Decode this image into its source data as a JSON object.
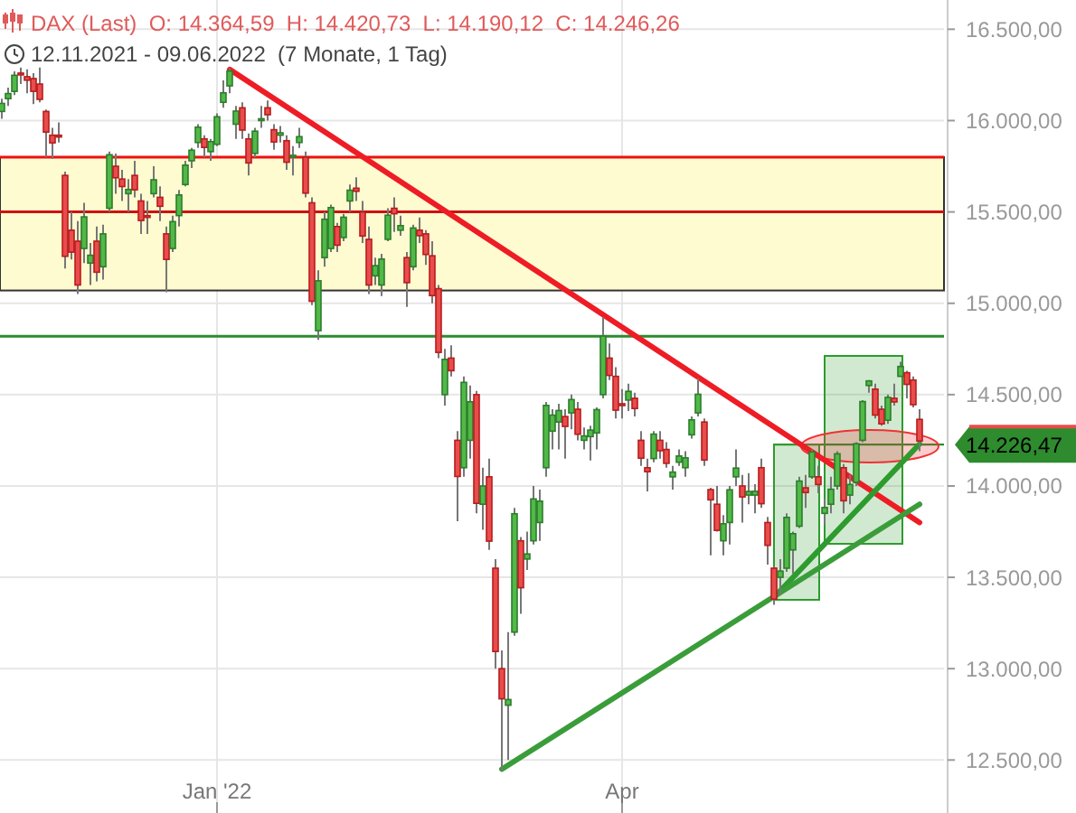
{
  "chart_data": {
    "type": "candlestick",
    "title": "DAX (Last)  O: 14.364,59  H: 14.420,73  L: 14.190,12  C: 14.246,26",
    "subtitle": "12.11.2021 - 09.06.2022  (7 Monate, 1 Tag)",
    "categories": [
      null,
      null,
      null,
      null,
      null,
      null,
      null,
      null,
      null,
      null,
      null,
      null,
      null,
      null,
      null,
      null,
      null,
      null,
      null,
      null,
      null,
      null,
      null,
      null,
      null,
      null,
      null,
      null,
      null,
      null,
      null,
      null,
      null,
      null,
      "Jan '22",
      null,
      null,
      null,
      null,
      null,
      null,
      null,
      null,
      null,
      null,
      null,
      null,
      null,
      null,
      null,
      null,
      null,
      null,
      null,
      null,
      null,
      null,
      null,
      null,
      null,
      null,
      null,
      null,
      null,
      null,
      null,
      null,
      null,
      null,
      null,
      null,
      null,
      null,
      null,
      null,
      null,
      null,
      null,
      null,
      null,
      null,
      null,
      null,
      null,
      null,
      null,
      null,
      null,
      null,
      null,
      null,
      null,
      null,
      null,
      null,
      null,
      null,
      null,
      "Apr",
      null,
      null,
      null,
      null,
      null,
      null,
      null,
      null,
      null,
      null,
      null,
      null,
      null,
      null,
      null,
      null,
      null,
      null,
      null,
      null,
      null,
      null,
      null,
      null,
      null,
      null,
      null,
      null,
      null,
      null,
      null,
      null,
      null,
      null,
      null,
      null,
      null,
      null,
      null,
      null,
      null,
      null,
      null,
      null,
      null,
      null,
      null
    ],
    "ohlc": [
      [
        16050,
        16120,
        16010,
        16094
      ],
      [
        16120,
        16180,
        16080,
        16148
      ],
      [
        16160,
        16270,
        16140,
        16248
      ],
      [
        16260,
        16290,
        16200,
        16251
      ],
      [
        16240,
        16280,
        16150,
        16221
      ],
      [
        16230,
        16260,
        16090,
        16160
      ],
      [
        16200,
        16290,
        16100,
        16116
      ],
      [
        16050,
        16060,
        15800,
        15937
      ],
      [
        15920,
        15960,
        15790,
        15878
      ],
      [
        15920,
        15990,
        15880,
        15918
      ],
      [
        15700,
        15720,
        15190,
        15257
      ],
      [
        15400,
        15500,
        15240,
        15280
      ],
      [
        15340,
        15450,
        15050,
        15100
      ],
      [
        15300,
        15550,
        15220,
        15473
      ],
      [
        15220,
        15330,
        15100,
        15263
      ],
      [
        15340,
        15420,
        15120,
        15170
      ],
      [
        15200,
        15430,
        15130,
        15380
      ],
      [
        15520,
        15830,
        15500,
        15813
      ],
      [
        15750,
        15820,
        15600,
        15687
      ],
      [
        15680,
        15730,
        15560,
        15639
      ],
      [
        15600,
        15680,
        15500,
        15623
      ],
      [
        15700,
        15780,
        15580,
        15621
      ],
      [
        15560,
        15600,
        15380,
        15453
      ],
      [
        15480,
        15560,
        15380,
        15476
      ],
      [
        15600,
        15750,
        15580,
        15676
      ],
      [
        15580,
        15640,
        15450,
        15531
      ],
      [
        15380,
        15420,
        15060,
        15240
      ],
      [
        15300,
        15480,
        15280,
        15447
      ],
      [
        15480,
        15620,
        15420,
        15593
      ],
      [
        15650,
        15780,
        15640,
        15756
      ],
      [
        15780,
        15850,
        15740,
        15838
      ],
      [
        15880,
        15980,
        15850,
        15964
      ],
      [
        15900,
        15920,
        15800,
        15853
      ],
      [
        15830,
        15900,
        15780,
        15885
      ],
      [
        15870,
        16040,
        15860,
        16021
      ],
      [
        16100,
        16220,
        16070,
        16152
      ],
      [
        16190,
        16285,
        16150,
        16271
      ],
      [
        15980,
        16080,
        15900,
        16052
      ],
      [
        16070,
        16100,
        15900,
        15948
      ],
      [
        15900,
        15930,
        15700,
        15768
      ],
      [
        15820,
        15960,
        15800,
        15942
      ],
      [
        16000,
        16080,
        15960,
        16010
      ],
      [
        16070,
        16110,
        16000,
        16032
      ],
      [
        15950,
        15980,
        15840,
        15883
      ],
      [
        15920,
        15970,
        15880,
        15933
      ],
      [
        15890,
        15920,
        15730,
        15772
      ],
      [
        15800,
        15860,
        15700,
        15810
      ],
      [
        15880,
        15960,
        15850,
        15912
      ],
      [
        15800,
        15830,
        15580,
        15603
      ],
      [
        15550,
        15580,
        14990,
        15011
      ],
      [
        14850,
        15180,
        14800,
        15123
      ],
      [
        15250,
        15500,
        15200,
        15460
      ],
      [
        15300,
        15540,
        15280,
        15524
      ],
      [
        15420,
        15440,
        15280,
        15318
      ],
      [
        15360,
        15490,
        15340,
        15471
      ],
      [
        15560,
        15650,
        15500,
        15619
      ],
      [
        15630,
        15690,
        15560,
        15613
      ],
      [
        15500,
        15560,
        15330,
        15368
      ],
      [
        15350,
        15420,
        15050,
        15100
      ],
      [
        15150,
        15250,
        15100,
        15206
      ],
      [
        15100,
        15270,
        15040,
        15242
      ],
      [
        15350,
        15520,
        15340,
        15482
      ],
      [
        15520,
        15580,
        15390,
        15490
      ],
      [
        15400,
        15480,
        15370,
        15425
      ],
      [
        15250,
        15280,
        14980,
        15113
      ],
      [
        15200,
        15430,
        15180,
        15412
      ],
      [
        15400,
        15470,
        15330,
        15370
      ],
      [
        15380,
        15400,
        15210,
        15267
      ],
      [
        15260,
        15340,
        15000,
        15042
      ],
      [
        15080,
        15100,
        14700,
        14731
      ],
      [
        14500,
        14750,
        14440,
        14693
      ],
      [
        14700,
        14770,
        14600,
        14631
      ],
      [
        14250,
        14300,
        13807,
        14052
      ],
      [
        14100,
        14600,
        14050,
        14567
      ],
      [
        14250,
        14550,
        14150,
        14461
      ],
      [
        14500,
        14520,
        13850,
        13905
      ],
      [
        13900,
        14100,
        13760,
        14000
      ],
      [
        14050,
        14150,
        13650,
        13698
      ],
      [
        13550,
        13600,
        13000,
        13094
      ],
      [
        13000,
        13100,
        12439,
        12835
      ],
      [
        12800,
        13200,
        12500,
        12831
      ],
      [
        13200,
        13880,
        13180,
        13848
      ],
      [
        13700,
        13720,
        13300,
        13443
      ],
      [
        13600,
        13750,
        13540,
        13628
      ],
      [
        13700,
        14000,
        13680,
        13929
      ],
      [
        13800,
        13980,
        13700,
        13917
      ],
      [
        14100,
        14460,
        14050,
        14441
      ],
      [
        14300,
        14420,
        14200,
        14388
      ],
      [
        14350,
        14450,
        14200,
        14413
      ],
      [
        14380,
        14420,
        14150,
        14326
      ],
      [
        14400,
        14500,
        14310,
        14473
      ],
      [
        14420,
        14460,
        14250,
        14283
      ],
      [
        14250,
        14320,
        14200,
        14274
      ],
      [
        14270,
        14330,
        14140,
        14306
      ],
      [
        14290,
        14430,
        14200,
        14418
      ],
      [
        14500,
        14925,
        14480,
        14821
      ],
      [
        14700,
        14780,
        14580,
        14605
      ],
      [
        14600,
        14650,
        14370,
        14415
      ],
      [
        14450,
        14530,
        14370,
        14446
      ],
      [
        14470,
        14560,
        14410,
        14518
      ],
      [
        14480,
        14510,
        14380,
        14424
      ],
      [
        14250,
        14300,
        14110,
        14152
      ],
      [
        14100,
        14150,
        13970,
        14078
      ],
      [
        14150,
        14300,
        14130,
        14284
      ],
      [
        14250,
        14300,
        14150,
        14193
      ],
      [
        14200,
        14240,
        14100,
        14124
      ],
      [
        14050,
        14110,
        13980,
        14076
      ],
      [
        14130,
        14200,
        14110,
        14164
      ],
      [
        14100,
        14190,
        14050,
        14154
      ],
      [
        14280,
        14380,
        14260,
        14362
      ],
      [
        14400,
        14590,
        14380,
        14502
      ],
      [
        14350,
        14370,
        14110,
        14142
      ],
      [
        13980,
        13990,
        13620,
        13924
      ],
      [
        13900,
        14000,
        13750,
        13757
      ],
      [
        13700,
        13840,
        13620,
        13793
      ],
      [
        13800,
        14000,
        13680,
        13979
      ],
      [
        14050,
        14200,
        14000,
        14098
      ],
      [
        14000,
        14060,
        13800,
        13940
      ],
      [
        13950,
        14070,
        13900,
        13970
      ],
      [
        13950,
        14010,
        13850,
        13971
      ],
      [
        14100,
        14150,
        13880,
        13903
      ],
      [
        13800,
        13830,
        13570,
        13675
      ],
      [
        13550,
        13560,
        13350,
        13381
      ],
      [
        13500,
        13600,
        13400,
        13534
      ],
      [
        13550,
        13850,
        13530,
        13828
      ],
      [
        13650,
        13750,
        13520,
        13739
      ],
      [
        13780,
        14050,
        13770,
        14027
      ],
      [
        13990,
        14060,
        13880,
        13964
      ],
      [
        14050,
        14200,
        14040,
        14186
      ],
      [
        14050,
        14110,
        13960,
        14008
      ],
      [
        13850,
        13930,
        13790,
        13882
      ],
      [
        13900,
        14050,
        13850,
        13982
      ],
      [
        14000,
        14190,
        13980,
        14176
      ],
      [
        14100,
        14120,
        13850,
        13919
      ],
      [
        13950,
        14060,
        13900,
        14008
      ],
      [
        14020,
        14240,
        14000,
        14231
      ],
      [
        14250,
        14470,
        14240,
        14462
      ],
      [
        14550,
        14580,
        14510,
        14575
      ],
      [
        14530,
        14560,
        14370,
        14388
      ],
      [
        14420,
        14440,
        14330,
        14340
      ],
      [
        14360,
        14500,
        14340,
        14485
      ],
      [
        14480,
        14560,
        14440,
        14460
      ],
      [
        14600,
        14680,
        14600,
        14654
      ],
      [
        14620,
        14630,
        14480,
        14556
      ],
      [
        14580,
        14600,
        14430,
        14445
      ],
      [
        14364.59,
        14420.73,
        14190.12,
        14246.26
      ]
    ],
    "series": [
      {
        "type": "line",
        "color": "#ee1c25",
        "values": [
          null,
          null,
          null,
          null,
          null,
          null,
          null,
          null,
          null,
          null,
          null,
          null,
          null,
          null,
          null,
          null,
          null,
          null,
          null,
          null,
          null,
          null,
          null,
          null,
          null,
          null,
          null,
          null,
          null,
          null,
          null,
          null,
          null,
          null,
          null,
          null,
          16280,
          null,
          null,
          null,
          null,
          null,
          null,
          null,
          null,
          null,
          null,
          null,
          null,
          null,
          null,
          null,
          null,
          null,
          null,
          null,
          null,
          null,
          null,
          null,
          null,
          null,
          null,
          null,
          null,
          null,
          null,
          null,
          null,
          null,
          null,
          null,
          null,
          null,
          null,
          null,
          null,
          null,
          null,
          null,
          null,
          null,
          null,
          null,
          null,
          null,
          null,
          null,
          null,
          null,
          null,
          null,
          null,
          null,
          null,
          null,
          null,
          null,
          null,
          null,
          null,
          null,
          null,
          null,
          null,
          null,
          null,
          null,
          null,
          null,
          null,
          null,
          null,
          null,
          null,
          null,
          null,
          null,
          null,
          null,
          null,
          null,
          null,
          null,
          null,
          null,
          null,
          null,
          null,
          null,
          null,
          null,
          null,
          null,
          null,
          null,
          null,
          null,
          null,
          null,
          null,
          null,
          null,
          null,
          null,
          13800
        ]
      },
      {
        "type": "line",
        "color": "#2e9b2e",
        "values": [
          null,
          null,
          null,
          null,
          null,
          null,
          null,
          null,
          null,
          null,
          null,
          null,
          null,
          null,
          null,
          null,
          null,
          null,
          null,
          null,
          null,
          null,
          null,
          null,
          null,
          null,
          null,
          null,
          null,
          null,
          null,
          null,
          null,
          null,
          null,
          null,
          null,
          null,
          null,
          null,
          null,
          null,
          null,
          null,
          null,
          null,
          null,
          null,
          null,
          null,
          null,
          null,
          null,
          null,
          null,
          null,
          null,
          null,
          null,
          null,
          null,
          null,
          null,
          null,
          null,
          null,
          null,
          null,
          null,
          null,
          null,
          null,
          null,
          null,
          null,
          null,
          null,
          null,
          null,
          null,
          null,
          null,
          null,
          null,
          null,
          null,
          null,
          null,
          null,
          null,
          null,
          null,
          null,
          null,
          null,
          null,
          null,
          null,
          null,
          null,
          null,
          null,
          null,
          null,
          null,
          null,
          null,
          null,
          null,
          null,
          null,
          null,
          null,
          null,
          null,
          null,
          null,
          null,
          null,
          null,
          null,
          null,
          13390,
          null,
          null,
          null,
          null,
          null,
          null,
          null,
          null,
          null,
          null,
          null,
          null,
          null,
          null,
          null,
          null,
          null,
          null,
          null,
          null,
          null,
          null,
          14230
        ]
      },
      {
        "type": "line",
        "color": "#3a9d3a",
        "values": [
          null,
          null,
          null,
          null,
          null,
          null,
          null,
          null,
          null,
          null,
          null,
          null,
          null,
          null,
          null,
          null,
          null,
          null,
          null,
          null,
          null,
          null,
          null,
          null,
          null,
          null,
          null,
          null,
          null,
          null,
          null,
          null,
          null,
          null,
          null,
          null,
          null,
          null,
          null,
          null,
          null,
          null,
          null,
          null,
          null,
          null,
          null,
          null,
          null,
          null,
          null,
          null,
          null,
          null,
          null,
          null,
          null,
          null,
          null,
          null,
          null,
          null,
          null,
          null,
          null,
          null,
          null,
          null,
          null,
          null,
          null,
          null,
          null,
          null,
          null,
          null,
          null,
          null,
          null,
          12450,
          null,
          null,
          null,
          null,
          null,
          null,
          null,
          null,
          null,
          null,
          null,
          null,
          null,
          null,
          null,
          null,
          null,
          null,
          null,
          null,
          null,
          null,
          null,
          null,
          null,
          null,
          null,
          null,
          null,
          null,
          null,
          null,
          null,
          null,
          null,
          null,
          null,
          null,
          null,
          null,
          null,
          null,
          null,
          null,
          null,
          null,
          null,
          null,
          null,
          null,
          null,
          null,
          null,
          null,
          null,
          null,
          null,
          null,
          null,
          null,
          null,
          null,
          null,
          null,
          null,
          13900
        ]
      }
    ],
    "ref_lines": [
      {
        "axis": "y",
        "value": 15800,
        "color": "#ee1111"
      },
      {
        "axis": "y",
        "value": 15500,
        "color": "#cc1111"
      },
      {
        "axis": "y",
        "value": 14820,
        "color": "#2e8b2e"
      },
      {
        "axis": "y",
        "value": 14226.47,
        "label": "14.226,47",
        "color": "#2e8b2e"
      }
    ],
    "bands": [
      {
        "axis": "y",
        "from": 15070,
        "to": 15800,
        "color": "#fffbd0"
      }
    ],
    "ylim": [
      12210,
      16660
    ],
    "yticks": [
      {
        "value": 12500,
        "label": "12.500,00"
      },
      {
        "value": 13000,
        "label": "13.000,00"
      },
      {
        "value": 13500,
        "label": "13.500,00"
      },
      {
        "value": 14000,
        "label": "14.000,00"
      },
      {
        "value": 14500,
        "label": "14.500,00"
      },
      {
        "value": 15000,
        "label": "15.000,00"
      },
      {
        "value": 15500,
        "label": "15.500,00"
      },
      {
        "value": 16000,
        "label": "16.000,00"
      },
      {
        "value": 16500,
        "label": "16.500,00"
      }
    ],
    "grid": true
  }
}
